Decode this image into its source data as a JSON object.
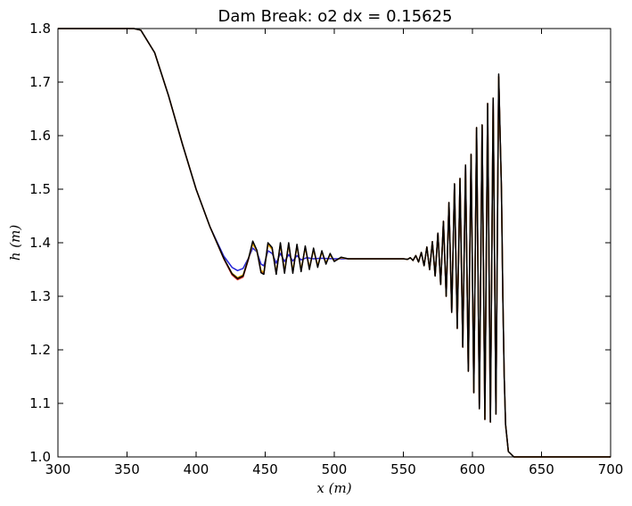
{
  "chart_data": {
    "type": "line",
    "title": "Dam Break: o2 dx = 0.15625",
    "xlabel": "x (m)",
    "ylabel": "h (m)",
    "xlim": [
      300,
      700
    ],
    "ylim": [
      1.0,
      1.8
    ],
    "xticks": [
      300,
      350,
      400,
      450,
      500,
      550,
      600,
      650,
      700
    ],
    "yticks": [
      1.0,
      1.1,
      1.2,
      1.3,
      1.4,
      1.5,
      1.6,
      1.7,
      1.8
    ],
    "xtick_labels": [
      "300",
      "350",
      "400",
      "450",
      "500",
      "550",
      "600",
      "650",
      "700"
    ],
    "ytick_labels": [
      "1.0",
      "1.1",
      "1.2",
      "1.3",
      "1.4",
      "1.5",
      "1.6",
      "1.7",
      "1.8"
    ],
    "grid": false,
    "legend": false,
    "series": [
      {
        "color": "#1f1fd6",
        "points": [
          [
            300,
            1.8
          ],
          [
            355,
            1.8
          ],
          [
            360,
            1.797
          ],
          [
            370,
            1.755
          ],
          [
            380,
            1.675
          ],
          [
            390,
            1.585
          ],
          [
            400,
            1.5
          ],
          [
            410,
            1.43
          ],
          [
            420,
            1.375
          ],
          [
            426,
            1.354
          ],
          [
            430,
            1.348
          ],
          [
            434,
            1.352
          ],
          [
            438,
            1.372
          ],
          [
            441,
            1.39
          ],
          [
            444,
            1.383
          ],
          [
            447,
            1.36
          ],
          [
            449,
            1.357
          ],
          [
            452,
            1.385
          ],
          [
            455,
            1.38
          ],
          [
            458,
            1.362
          ],
          [
            461,
            1.38
          ],
          [
            464,
            1.365
          ],
          [
            467,
            1.378
          ],
          [
            470,
            1.366
          ],
          [
            473,
            1.376
          ],
          [
            476,
            1.368
          ],
          [
            480,
            1.372
          ],
          [
            485,
            1.37
          ],
          [
            490,
            1.371
          ],
          [
            500,
            1.37
          ],
          [
            520,
            1.37
          ],
          [
            545,
            1.37
          ],
          [
            550,
            1.37
          ],
          [
            553,
            1.369
          ],
          [
            555,
            1.372
          ],
          [
            557,
            1.367
          ],
          [
            559,
            1.376
          ],
          [
            561,
            1.364
          ],
          [
            563,
            1.382
          ],
          [
            565,
            1.357
          ],
          [
            567,
            1.392
          ],
          [
            569,
            1.35
          ],
          [
            571,
            1.402
          ],
          [
            573,
            1.338
          ],
          [
            575,
            1.418
          ],
          [
            577,
            1.322
          ],
          [
            579,
            1.44
          ],
          [
            581,
            1.3
          ],
          [
            583,
            1.475
          ],
          [
            585,
            1.27
          ],
          [
            587,
            1.51
          ],
          [
            589,
            1.24
          ],
          [
            591,
            1.52
          ],
          [
            593,
            1.205
          ],
          [
            595,
            1.545
          ],
          [
            597,
            1.16
          ],
          [
            599,
            1.565
          ],
          [
            601,
            1.12
          ],
          [
            603,
            1.615
          ],
          [
            605,
            1.09
          ],
          [
            607,
            1.62
          ],
          [
            609,
            1.07
          ],
          [
            611,
            1.66
          ],
          [
            613,
            1.065
          ],
          [
            615,
            1.67
          ],
          [
            617,
            1.08
          ],
          [
            619,
            1.71
          ],
          [
            621,
            1.5
          ],
          [
            622,
            1.3
          ],
          [
            623,
            1.15
          ],
          [
            624,
            1.06
          ],
          [
            626,
            1.01
          ],
          [
            630,
            1.0
          ],
          [
            700,
            1.0
          ]
        ]
      },
      {
        "color": "#d42a1f",
        "points": [
          [
            300,
            1.8
          ],
          [
            355,
            1.8
          ],
          [
            360,
            1.797
          ],
          [
            370,
            1.755
          ],
          [
            380,
            1.675
          ],
          [
            390,
            1.585
          ],
          [
            400,
            1.5
          ],
          [
            410,
            1.43
          ],
          [
            420,
            1.37
          ],
          [
            426,
            1.34
          ],
          [
            430,
            1.331
          ],
          [
            434,
            1.336
          ],
          [
            438,
            1.37
          ],
          [
            441,
            1.4
          ],
          [
            444,
            1.385
          ],
          [
            447,
            1.345
          ],
          [
            449,
            1.342
          ],
          [
            452,
            1.398
          ],
          [
            455,
            1.39
          ],
          [
            458,
            1.342
          ],
          [
            461,
            1.398
          ],
          [
            464,
            1.345
          ],
          [
            467,
            1.398
          ],
          [
            470,
            1.345
          ],
          [
            473,
            1.395
          ],
          [
            476,
            1.348
          ],
          [
            479,
            1.392
          ],
          [
            482,
            1.352
          ],
          [
            485,
            1.388
          ],
          [
            488,
            1.356
          ],
          [
            491,
            1.383
          ],
          [
            494,
            1.362
          ],
          [
            497,
            1.378
          ],
          [
            500,
            1.366
          ],
          [
            505,
            1.372
          ],
          [
            510,
            1.37
          ],
          [
            520,
            1.37
          ],
          [
            545,
            1.37
          ],
          [
            550,
            1.37
          ],
          [
            553,
            1.369
          ],
          [
            555,
            1.372
          ],
          [
            557,
            1.367
          ],
          [
            559,
            1.376
          ],
          [
            561,
            1.364
          ],
          [
            563,
            1.382
          ],
          [
            565,
            1.357
          ],
          [
            567,
            1.392
          ],
          [
            569,
            1.35
          ],
          [
            571,
            1.402
          ],
          [
            573,
            1.338
          ],
          [
            575,
            1.418
          ],
          [
            577,
            1.322
          ],
          [
            579,
            1.44
          ],
          [
            581,
            1.3
          ],
          [
            583,
            1.475
          ],
          [
            585,
            1.27
          ],
          [
            587,
            1.51
          ],
          [
            589,
            1.24
          ],
          [
            591,
            1.52
          ],
          [
            593,
            1.205
          ],
          [
            595,
            1.545
          ],
          [
            597,
            1.16
          ],
          [
            599,
            1.565
          ],
          [
            601,
            1.12
          ],
          [
            603,
            1.615
          ],
          [
            605,
            1.09
          ],
          [
            607,
            1.62
          ],
          [
            609,
            1.07
          ],
          [
            611,
            1.66
          ],
          [
            613,
            1.065
          ],
          [
            615,
            1.67
          ],
          [
            617,
            1.08
          ],
          [
            619,
            1.71
          ],
          [
            621,
            1.5
          ],
          [
            622,
            1.3
          ],
          [
            623,
            1.15
          ],
          [
            624,
            1.06
          ],
          [
            626,
            1.01
          ],
          [
            630,
            1.0
          ],
          [
            700,
            1.0
          ]
        ]
      },
      {
        "color": "#e0a000",
        "points": [
          [
            300,
            1.8
          ],
          [
            355,
            1.8
          ],
          [
            360,
            1.797
          ],
          [
            370,
            1.755
          ],
          [
            380,
            1.675
          ],
          [
            390,
            1.585
          ],
          [
            400,
            1.5
          ],
          [
            410,
            1.43
          ],
          [
            420,
            1.371
          ],
          [
            426,
            1.343
          ],
          [
            430,
            1.335
          ],
          [
            434,
            1.34
          ],
          [
            438,
            1.372
          ],
          [
            441,
            1.398
          ],
          [
            444,
            1.384
          ],
          [
            447,
            1.348
          ],
          [
            449,
            1.345
          ],
          [
            452,
            1.396
          ],
          [
            455,
            1.388
          ],
          [
            458,
            1.345
          ],
          [
            461,
            1.396
          ],
          [
            464,
            1.348
          ],
          [
            467,
            1.396
          ],
          [
            470,
            1.348
          ],
          [
            473,
            1.393
          ],
          [
            476,
            1.35
          ],
          [
            479,
            1.39
          ],
          [
            482,
            1.354
          ],
          [
            485,
            1.386
          ],
          [
            488,
            1.358
          ],
          [
            491,
            1.382
          ],
          [
            494,
            1.363
          ],
          [
            497,
            1.377
          ],
          [
            500,
            1.366
          ],
          [
            505,
            1.372
          ],
          [
            510,
            1.37
          ],
          [
            520,
            1.37
          ],
          [
            545,
            1.37
          ],
          [
            550,
            1.37
          ],
          [
            553,
            1.369
          ],
          [
            555,
            1.372
          ],
          [
            557,
            1.367
          ],
          [
            559,
            1.376
          ],
          [
            561,
            1.364
          ],
          [
            563,
            1.382
          ],
          [
            565,
            1.357
          ],
          [
            567,
            1.392
          ],
          [
            569,
            1.35
          ],
          [
            571,
            1.402
          ],
          [
            573,
            1.338
          ],
          [
            575,
            1.418
          ],
          [
            577,
            1.322
          ],
          [
            579,
            1.44
          ],
          [
            581,
            1.3
          ],
          [
            583,
            1.475
          ],
          [
            585,
            1.27
          ],
          [
            587,
            1.51
          ],
          [
            589,
            1.24
          ],
          [
            591,
            1.52
          ],
          [
            593,
            1.205
          ],
          [
            595,
            1.545
          ],
          [
            597,
            1.16
          ],
          [
            599,
            1.565
          ],
          [
            601,
            1.12
          ],
          [
            603,
            1.615
          ],
          [
            605,
            1.09
          ],
          [
            607,
            1.62
          ],
          [
            609,
            1.07
          ],
          [
            611,
            1.66
          ],
          [
            613,
            1.065
          ],
          [
            615,
            1.67
          ],
          [
            617,
            1.08
          ],
          [
            619,
            1.71
          ],
          [
            621,
            1.5
          ],
          [
            622,
            1.3
          ],
          [
            623,
            1.15
          ],
          [
            624,
            1.06
          ],
          [
            626,
            1.01
          ],
          [
            630,
            1.0
          ],
          [
            700,
            1.0
          ]
        ]
      },
      {
        "color": "#000000",
        "points": [
          [
            300,
            1.8
          ],
          [
            355,
            1.8
          ],
          [
            360,
            1.797
          ],
          [
            370,
            1.755
          ],
          [
            380,
            1.675
          ],
          [
            390,
            1.585
          ],
          [
            400,
            1.5
          ],
          [
            410,
            1.43
          ],
          [
            420,
            1.371
          ],
          [
            426,
            1.342
          ],
          [
            430,
            1.333
          ],
          [
            434,
            1.338
          ],
          [
            438,
            1.371
          ],
          [
            441,
            1.403
          ],
          [
            444,
            1.386
          ],
          [
            447,
            1.344
          ],
          [
            449,
            1.341
          ],
          [
            452,
            1.4
          ],
          [
            455,
            1.391
          ],
          [
            458,
            1.341
          ],
          [
            461,
            1.4
          ],
          [
            464,
            1.343
          ],
          [
            467,
            1.4
          ],
          [
            470,
            1.343
          ],
          [
            473,
            1.397
          ],
          [
            476,
            1.346
          ],
          [
            479,
            1.394
          ],
          [
            482,
            1.35
          ],
          [
            485,
            1.39
          ],
          [
            488,
            1.354
          ],
          [
            491,
            1.385
          ],
          [
            494,
            1.36
          ],
          [
            497,
            1.38
          ],
          [
            500,
            1.365
          ],
          [
            505,
            1.373
          ],
          [
            510,
            1.37
          ],
          [
            520,
            1.37
          ],
          [
            545,
            1.37
          ],
          [
            550,
            1.37
          ],
          [
            553,
            1.369
          ],
          [
            555,
            1.372
          ],
          [
            557,
            1.367
          ],
          [
            559,
            1.376
          ],
          [
            561,
            1.364
          ],
          [
            563,
            1.382
          ],
          [
            565,
            1.357
          ],
          [
            567,
            1.392
          ],
          [
            569,
            1.35
          ],
          [
            571,
            1.402
          ],
          [
            573,
            1.338
          ],
          [
            575,
            1.418
          ],
          [
            577,
            1.322
          ],
          [
            579,
            1.44
          ],
          [
            581,
            1.3
          ],
          [
            583,
            1.475
          ],
          [
            585,
            1.27
          ],
          [
            587,
            1.51
          ],
          [
            589,
            1.24
          ],
          [
            591,
            1.52
          ],
          [
            593,
            1.205
          ],
          [
            595,
            1.545
          ],
          [
            597,
            1.16
          ],
          [
            599,
            1.565
          ],
          [
            601,
            1.12
          ],
          [
            603,
            1.615
          ],
          [
            605,
            1.09
          ],
          [
            607,
            1.62
          ],
          [
            609,
            1.07
          ],
          [
            611,
            1.66
          ],
          [
            613,
            1.065
          ],
          [
            615,
            1.67
          ],
          [
            617,
            1.08
          ],
          [
            619,
            1.715
          ],
          [
            621,
            1.5
          ],
          [
            622,
            1.3
          ],
          [
            623,
            1.15
          ],
          [
            624,
            1.06
          ],
          [
            626,
            1.01
          ],
          [
            630,
            1.0
          ],
          [
            700,
            1.0
          ]
        ]
      }
    ]
  }
}
